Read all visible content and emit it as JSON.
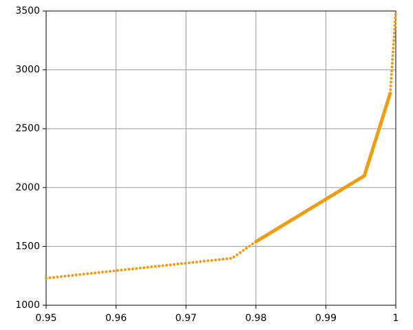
{
  "chart_data": {
    "type": "line",
    "xlim": [
      0.95,
      1
    ],
    "xticks": [
      0.95,
      0.96,
      0.97,
      0.98,
      0.99,
      1
    ],
    "ylim": [
      1000,
      3500
    ],
    "yticks": [
      1000,
      1500,
      2000,
      2500,
      3000,
      3500
    ],
    "grid": true,
    "series": [
      {
        "color": "#f39c12",
        "dotted": true,
        "x": [
          0.95,
          0.9766,
          0.98
        ],
        "values": [
          1230,
          1400,
          1540
        ]
      },
      {
        "color": "#f39c12",
        "dotted": false,
        "x": [
          0.98,
          0.9955,
          0.9992
        ],
        "values": [
          1540,
          2100,
          2800
        ]
      },
      {
        "color": "#f39c12",
        "dotted": true,
        "x": [
          0.9992,
          1
        ],
        "values": [
          2800,
          3500
        ]
      }
    ]
  }
}
